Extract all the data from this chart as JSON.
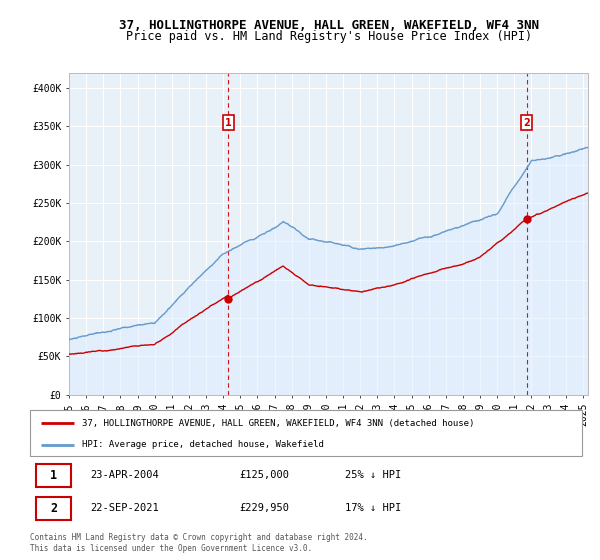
{
  "title": "37, HOLLINGTHORPE AVENUE, HALL GREEN, WAKEFIELD, WF4 3NN",
  "subtitle": "Price paid vs. HM Land Registry's House Price Index (HPI)",
  "ylabel_ticks": [
    "£0",
    "£50K",
    "£100K",
    "£150K",
    "£200K",
    "£250K",
    "£300K",
    "£350K",
    "£400K"
  ],
  "ytick_values": [
    0,
    50000,
    100000,
    150000,
    200000,
    250000,
    300000,
    350000,
    400000
  ],
  "ylim": [
    0,
    420000
  ],
  "xlim_start": 1995.0,
  "xlim_end": 2025.3,
  "xtick_years": [
    1995,
    1996,
    1997,
    1998,
    1999,
    2000,
    2001,
    2002,
    2003,
    2004,
    2005,
    2006,
    2007,
    2008,
    2009,
    2010,
    2011,
    2012,
    2013,
    2014,
    2015,
    2016,
    2017,
    2018,
    2019,
    2020,
    2021,
    2022,
    2023,
    2024,
    2025
  ],
  "sale1_x": 2004.31,
  "sale1_y": 125000,
  "sale1_label": "1",
  "sale2_x": 2021.72,
  "sale2_y": 229950,
  "sale2_label": "2",
  "red_line_color": "#cc0000",
  "blue_line_color": "#6699cc",
  "fill_color": "#ddeeff",
  "background_color": "#e8f0f8",
  "grid_color": "#ffffff",
  "dashed_line_color": "#cc0000",
  "legend_entry1": "37, HOLLINGTHORPE AVENUE, HALL GREEN, WAKEFIELD, WF4 3NN (detached house)",
  "legend_entry2": "HPI: Average price, detached house, Wakefield",
  "table_row1": [
    "1",
    "23-APR-2004",
    "£125,000",
    "25% ↓ HPI"
  ],
  "table_row2": [
    "2",
    "22-SEP-2021",
    "£229,950",
    "17% ↓ HPI"
  ],
  "footer": "Contains HM Land Registry data © Crown copyright and database right 2024.\nThis data is licensed under the Open Government Licence v3.0.",
  "title_fontsize": 9,
  "subtitle_fontsize": 8.5
}
